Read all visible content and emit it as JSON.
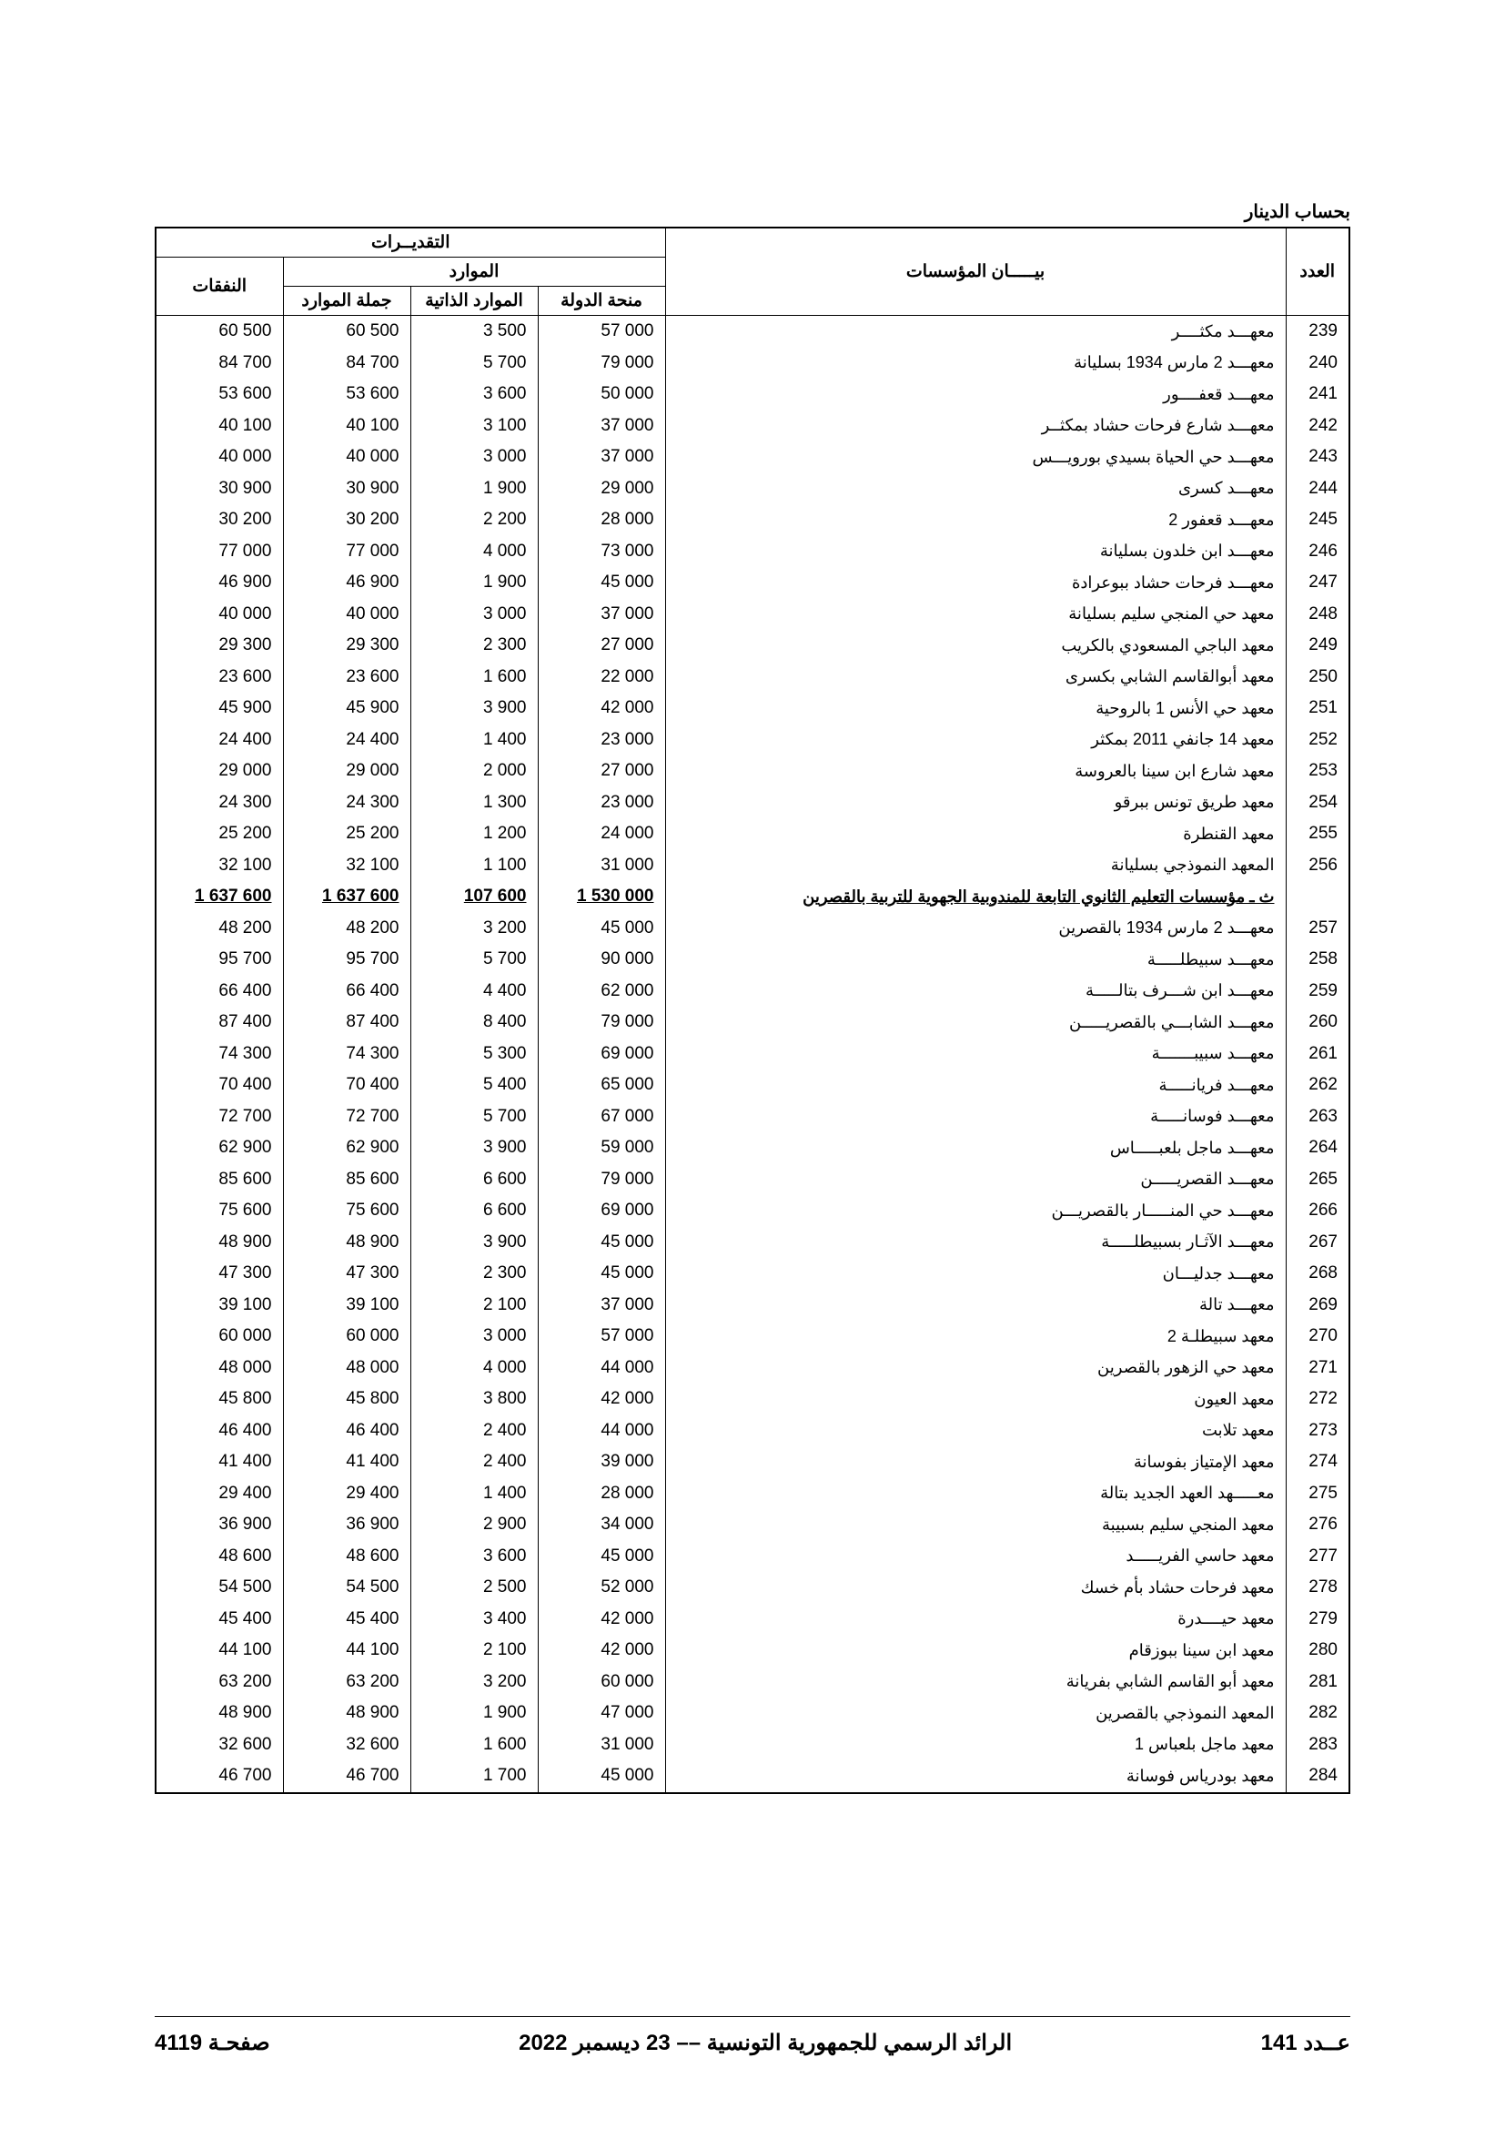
{
  "unit_label": "بحساب الدينار",
  "headers": {
    "main": {
      "num": "العدد",
      "institutions": "بيـــــان المؤسسات",
      "estimates": "التقديــرات"
    },
    "sub": {
      "resources": "الموارد",
      "expenses": "النفقات"
    },
    "cols": {
      "state_grant": "منحة الدولة",
      "self_res": "الموارد الذاتية",
      "total_res": "جملة الموارد"
    }
  },
  "columns_config": {
    "widths": {
      "num": "70px",
      "name": "auto",
      "state_grant": "140px",
      "self_res": "140px",
      "total_res": "140px",
      "expenses": "140px"
    }
  },
  "rows": [
    {
      "num": "239",
      "name": "معهـــد مكثــــر",
      "state_grant": "57 000",
      "self_res": "3 500",
      "total_res": "60 500",
      "expenses": "60 500"
    },
    {
      "num": "240",
      "name": "معهـــد 2 مارس 1934 بسليانة",
      "state_grant": "79 000",
      "self_res": "5 700",
      "total_res": "84 700",
      "expenses": "84 700"
    },
    {
      "num": "241",
      "name": "معهـــد قعفــــور",
      "state_grant": "50 000",
      "self_res": "3 600",
      "total_res": "53 600",
      "expenses": "53 600"
    },
    {
      "num": "242",
      "name": "معهـــد شارع فرحات حشاد بمكثــر",
      "state_grant": "37 000",
      "self_res": "3 100",
      "total_res": "40 100",
      "expenses": "40 100"
    },
    {
      "num": "243",
      "name": "معهـــد حي الحياة بسيدي بورويـــس",
      "state_grant": "37 000",
      "self_res": "3 000",
      "total_res": "40 000",
      "expenses": "40 000"
    },
    {
      "num": "244",
      "name": "معهـــد كسرى",
      "state_grant": "29 000",
      "self_res": "1 900",
      "total_res": "30 900",
      "expenses": "30 900"
    },
    {
      "num": "245",
      "name": "معهـــد قعفور 2",
      "state_grant": "28 000",
      "self_res": "2 200",
      "total_res": "30 200",
      "expenses": "30 200"
    },
    {
      "num": "246",
      "name": "معهـــد ابن خلدون بسليانة",
      "state_grant": "73 000",
      "self_res": "4 000",
      "total_res": "77 000",
      "expenses": "77 000"
    },
    {
      "num": "247",
      "name": "معهـــد فرحات حشاد ببوعرادة",
      "state_grant": "45 000",
      "self_res": "1 900",
      "total_res": "46 900",
      "expenses": "46 900"
    },
    {
      "num": "248",
      "name": "معهد حي المنجي سليم بسليانة",
      "state_grant": "37 000",
      "self_res": "3 000",
      "total_res": "40 000",
      "expenses": "40 000"
    },
    {
      "num": "249",
      "name": "معهد الباجي المسعودي بالكريب",
      "state_grant": "27 000",
      "self_res": "2 300",
      "total_res": "29 300",
      "expenses": "29 300"
    },
    {
      "num": "250",
      "name": "معهد أبوالقاسم الشابي بكسرى",
      "state_grant": "22 000",
      "self_res": "1 600",
      "total_res": "23 600",
      "expenses": "23 600"
    },
    {
      "num": "251",
      "name": "معهد حي الأنس 1 بالروحية",
      "state_grant": "42 000",
      "self_res": "3 900",
      "total_res": "45 900",
      "expenses": "45 900"
    },
    {
      "num": "252",
      "name": "معهد 14 جانفي 2011 بمكثر",
      "state_grant": "23 000",
      "self_res": "1 400",
      "total_res": "24 400",
      "expenses": "24 400"
    },
    {
      "num": "253",
      "name": "معهد شارع ابن سينا بالعروسة",
      "state_grant": "27 000",
      "self_res": "2 000",
      "total_res": "29 000",
      "expenses": "29 000"
    },
    {
      "num": "254",
      "name": "معهد طريق تونس ببرقو",
      "state_grant": "23 000",
      "self_res": "1 300",
      "total_res": "24 300",
      "expenses": "24 300"
    },
    {
      "num": "255",
      "name": "معهد القنطرة",
      "state_grant": "24 000",
      "self_res": "1 200",
      "total_res": "25 200",
      "expenses": "25 200"
    },
    {
      "num": "256",
      "name": "المعهد النموذجي  بسليانة",
      "state_grant": "31 000",
      "self_res": "1 100",
      "total_res": "32 100",
      "expenses": "32 100"
    },
    {
      "subtotal": true,
      "name": "ث ـ مؤسسات التعليم الثانوي التابعة للمندوبية الجهوية للتربية بالقصرين",
      "state_grant": "1 530 000",
      "self_res": "107 600",
      "total_res": "1 637 600",
      "expenses": "1 637 600"
    },
    {
      "num": "257",
      "name": "معهـــد 2 مارس 1934 بالقصرين",
      "state_grant": "45 000",
      "self_res": "3 200",
      "total_res": "48 200",
      "expenses": "48 200"
    },
    {
      "num": "258",
      "name": "معهـــد سبيطلـــــة",
      "state_grant": "90 000",
      "self_res": "5 700",
      "total_res": "95 700",
      "expenses": "95 700"
    },
    {
      "num": "259",
      "name": "معهـــد ابن شـــرف بتالـــــة",
      "state_grant": "62 000",
      "self_res": "4 400",
      "total_res": "66 400",
      "expenses": "66 400"
    },
    {
      "num": "260",
      "name": "معهـــد الشابـــي بالقصريـــــن",
      "state_grant": "79 000",
      "self_res": "8 400",
      "total_res": "87 400",
      "expenses": "87 400"
    },
    {
      "num": "261",
      "name": "معهـــد سبيبـــــــة",
      "state_grant": "69 000",
      "self_res": "5 300",
      "total_res": "74 300",
      "expenses": "74 300"
    },
    {
      "num": "262",
      "name": "معهـــد فريانـــــة",
      "state_grant": "65 000",
      "self_res": "5 400",
      "total_res": "70 400",
      "expenses": "70 400"
    },
    {
      "num": "263",
      "name": "معهـــد فوسانـــــة",
      "state_grant": "67 000",
      "self_res": "5 700",
      "total_res": "72 700",
      "expenses": "72 700"
    },
    {
      "num": "264",
      "name": "معهـــد ماجل بلعبـــــاس",
      "state_grant": "59 000",
      "self_res": "3 900",
      "total_res": "62 900",
      "expenses": "62 900"
    },
    {
      "num": "265",
      "name": "معهـــد القصريـــــن",
      "state_grant": "79 000",
      "self_res": "6 600",
      "total_res": "85 600",
      "expenses": "85 600"
    },
    {
      "num": "266",
      "name": "معهـــد حي المنـــــار بالقصريـــن",
      "state_grant": "69 000",
      "self_res": "6 600",
      "total_res": "75 600",
      "expenses": "75 600"
    },
    {
      "num": "267",
      "name": "معهـــد الآثـار بسبيطلـــــة",
      "state_grant": "45 000",
      "self_res": "3 900",
      "total_res": "48 900",
      "expenses": "48 900"
    },
    {
      "num": "268",
      "name": "معهـــد جدليـــان",
      "state_grant": "45 000",
      "self_res": "2 300",
      "total_res": "47 300",
      "expenses": "47 300"
    },
    {
      "num": "269",
      "name": "معهـــد تالة",
      "state_grant": "37 000",
      "self_res": "2 100",
      "total_res": "39 100",
      "expenses": "39 100"
    },
    {
      "num": "270",
      "name": "معهد سبيطلـة 2",
      "state_grant": "57 000",
      "self_res": "3 000",
      "total_res": "60 000",
      "expenses": "60 000"
    },
    {
      "num": "271",
      "name": "معهد حي الزهور بالقصرين",
      "state_grant": "44 000",
      "self_res": "4 000",
      "total_res": "48 000",
      "expenses": "48 000"
    },
    {
      "num": "272",
      "name": "معهد العيون",
      "state_grant": "42 000",
      "self_res": "3 800",
      "total_res": "45 800",
      "expenses": "45 800"
    },
    {
      "num": "273",
      "name": "معهد تلابت",
      "state_grant": "44 000",
      "self_res": "2 400",
      "total_res": "46 400",
      "expenses": "46 400"
    },
    {
      "num": "274",
      "name": "معهد الإمتياز بفوسانة",
      "state_grant": "39 000",
      "self_res": "2 400",
      "total_res": "41 400",
      "expenses": "41 400"
    },
    {
      "num": "275",
      "name": "معـــــهد العهد الجديد بتالة",
      "state_grant": "28 000",
      "self_res": "1 400",
      "total_res": "29 400",
      "expenses": "29 400"
    },
    {
      "num": "276",
      "name": "معهد المنجي سليم بسبيبة",
      "state_grant": "34 000",
      "self_res": "2 900",
      "total_res": "36 900",
      "expenses": "36 900"
    },
    {
      "num": "277",
      "name": "معهد حاسي الفريـــــد",
      "state_grant": "45 000",
      "self_res": "3 600",
      "total_res": "48 600",
      "expenses": "48 600"
    },
    {
      "num": "278",
      "name": "معهد فرحات حشاد بأم خسك",
      "state_grant": "52 000",
      "self_res": "2 500",
      "total_res": "54 500",
      "expenses": "54 500"
    },
    {
      "num": "279",
      "name": "معهد حيــــدرة",
      "state_grant": "42 000",
      "self_res": "3 400",
      "total_res": "45 400",
      "expenses": "45 400"
    },
    {
      "num": "280",
      "name": "معهد ابن سينا ببوزقام",
      "state_grant": "42 000",
      "self_res": "2 100",
      "total_res": "44 100",
      "expenses": "44 100"
    },
    {
      "num": "281",
      "name": "معهد أبو القاسم الشابي بفريانة",
      "state_grant": "60 000",
      "self_res": "3 200",
      "total_res": "63 200",
      "expenses": "63 200"
    },
    {
      "num": "282",
      "name": "المعهد النموذجي بالقصرين",
      "state_grant": "47 000",
      "self_res": "1 900",
      "total_res": "48 900",
      "expenses": "48 900"
    },
    {
      "num": "283",
      "name": "معهد ماجل بلعباس 1",
      "state_grant": "31 000",
      "self_res": "1 600",
      "total_res": "32 600",
      "expenses": "32 600"
    },
    {
      "num": "284",
      "name": "معهد بودرياس فوسانة",
      "state_grant": "45 000",
      "self_res": "1 700",
      "total_res": "46 700",
      "expenses": "46 700"
    }
  ],
  "footer": {
    "page_label": "صفحـة 4119",
    "journal_title": "الرائد الرسمي للجمهورية التونسية –– 23 ديسمبر 2022",
    "issue_label": "عــدد 141"
  },
  "styling": {
    "border_color": "#000000",
    "background_color": "#ffffff",
    "header_font_size": 19,
    "body_font_size": 19,
    "footer_font_size": 24,
    "line_height": 1.5
  }
}
